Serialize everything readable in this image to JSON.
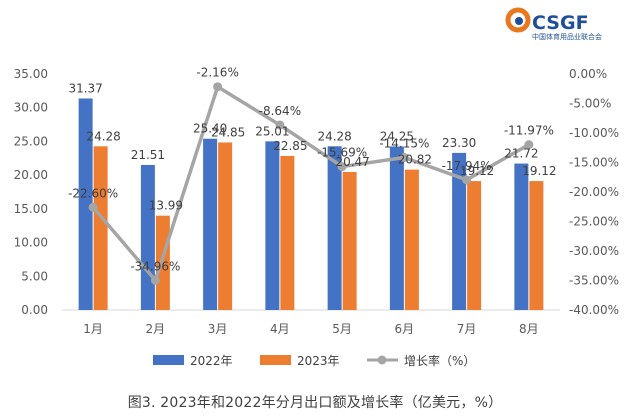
{
  "logo": {
    "text": "CSGF",
    "subtext": "中国体育用品业联合会"
  },
  "caption": "图3. 2023年和2022年分月出口额及增长率（亿美元，%）",
  "colors": {
    "series_2022": "#4472C4",
    "series_2023": "#ED7D31",
    "growth": "#A5A5A5",
    "logo_orange": "#E8781E",
    "logo_blue": "#1F4E9B"
  },
  "chart_data": {
    "type": "bar",
    "categories": [
      "1月",
      "2月",
      "3月",
      "4月",
      "5月",
      "6月",
      "7月",
      "8月"
    ],
    "series": [
      {
        "name": "2022年",
        "type": "bar",
        "axis": "left",
        "values": [
          31.37,
          21.51,
          25.4,
          25.01,
          24.28,
          24.25,
          23.3,
          21.72
        ]
      },
      {
        "name": "2023年",
        "type": "bar",
        "axis": "left",
        "values": [
          24.28,
          13.99,
          24.85,
          22.85,
          20.47,
          20.82,
          19.12,
          19.12
        ]
      },
      {
        "name": "增长率（%）",
        "type": "line",
        "axis": "right",
        "values": [
          -22.6,
          -34.96,
          -2.16,
          -8.64,
          -15.69,
          -14.15,
          -17.94,
          -11.97
        ]
      }
    ],
    "bar_labels_2022": [
      "31.37",
      "21.51",
      "25.40",
      "25.01",
      "24.28",
      "24.25",
      "23.30",
      "21.72"
    ],
    "bar_labels_2023": [
      "24.28",
      "13.99",
      "24.85",
      "22.85",
      "20.47",
      "20.82",
      "19.12",
      "19.12"
    ],
    "growth_labels": [
      "-22.60%",
      "-34.96%",
      "-2.16%",
      "-8.64%",
      "-15.69%",
      "-14.15%",
      "-17.94%",
      "-11.97%"
    ],
    "y_left_ticks": [
      "35.00",
      "30.00",
      "25.00",
      "20.00",
      "15.00",
      "10.00",
      "5.00",
      "0.00"
    ],
    "y_right_ticks": [
      "0.00%",
      "-5.00%",
      "-10.00%",
      "-15.00%",
      "-20.00%",
      "-25.00%",
      "-30.00%",
      "-35.00%",
      "-40.00%"
    ],
    "ylim_left": [
      0,
      35
    ],
    "ylim_right": [
      -40,
      0
    ],
    "grid": false,
    "legend_position": "bottom",
    "legend": [
      "2022年",
      "2023年",
      "增长率（%）"
    ]
  }
}
